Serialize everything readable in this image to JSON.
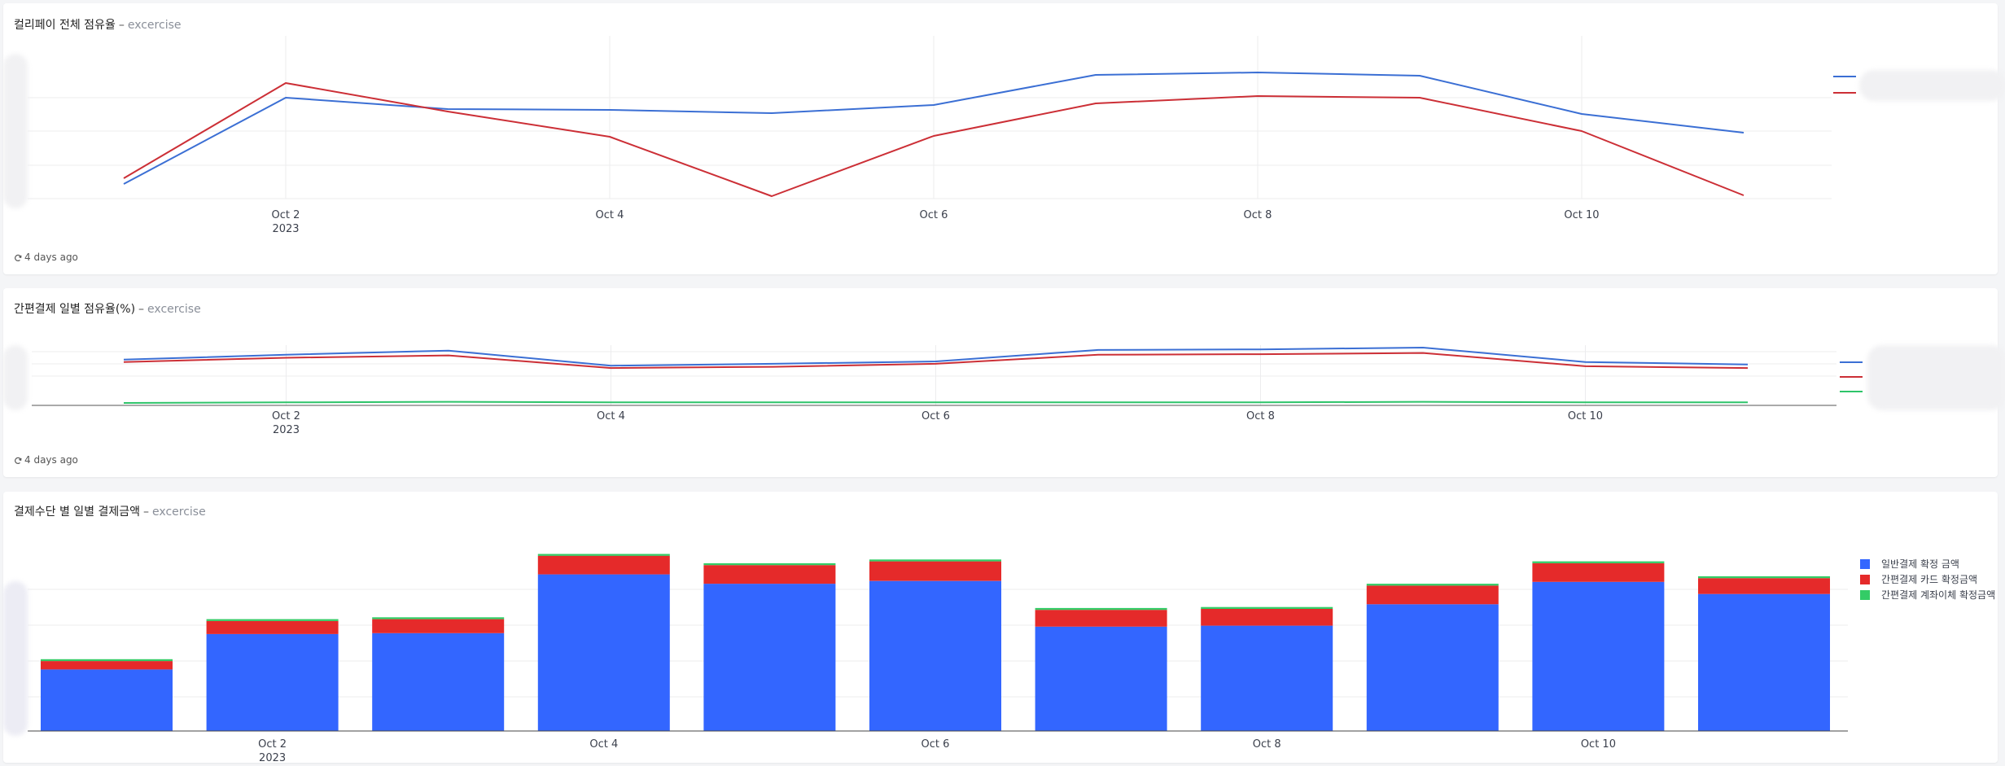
{
  "charts": [
    {
      "title": "컬리페이 전체 점유율",
      "separator": "–",
      "database": "excercise",
      "footer": "4 days ago",
      "x_ticks": [
        {
          "day": 2,
          "label": "Oct 2",
          "sub": "2023"
        },
        {
          "day": 4,
          "label": "Oct 4",
          "sub": ""
        },
        {
          "day": 6,
          "label": "Oct 6",
          "sub": ""
        },
        {
          "day": 8,
          "label": "Oct 8",
          "sub": ""
        },
        {
          "day": 10,
          "label": "Oct 10",
          "sub": ""
        }
      ]
    },
    {
      "title": "간편결제 일별 점유율(%)",
      "separator": "–",
      "database": "excercise",
      "footer": "4 days ago",
      "x_ticks": [
        {
          "day": 2,
          "label": "Oct 2",
          "sub": "2023"
        },
        {
          "day": 4,
          "label": "Oct 4",
          "sub": ""
        },
        {
          "day": 6,
          "label": "Oct 6",
          "sub": ""
        },
        {
          "day": 8,
          "label": "Oct 8",
          "sub": ""
        },
        {
          "day": 10,
          "label": "Oct 10",
          "sub": ""
        }
      ]
    },
    {
      "title": "결제수단 별 일별 결제금액",
      "separator": "–",
      "database": "excercise",
      "x_ticks": [
        {
          "day": 2,
          "label": "Oct 2",
          "sub": "2023"
        },
        {
          "day": 4,
          "label": "Oct 4",
          "sub": ""
        },
        {
          "day": 6,
          "label": "Oct 6",
          "sub": ""
        },
        {
          "day": 8,
          "label": "Oct 8",
          "sub": ""
        },
        {
          "day": 10,
          "label": "Oct 10",
          "sub": ""
        }
      ]
    }
  ],
  "chart_data": [
    {
      "type": "line",
      "x": [
        "2023-10-01",
        "2023-10-02",
        "2023-10-03",
        "2023-10-04",
        "2023-10-05",
        "2023-10-06",
        "2023-10-07",
        "2023-10-08",
        "2023-10-09",
        "2023-10-10",
        "2023-10-11"
      ],
      "ylim": [
        0,
        100
      ],
      "grid": true,
      "legend": "right, labels obscured",
      "series": [
        {
          "color": "#3b6fd4",
          "values": [
            9,
            62,
            55,
            54.5,
            52.5,
            57.5,
            76,
            77.5,
            75.5,
            52,
            40.5
          ]
        },
        {
          "color": "#cc2f36",
          "values": [
            12.5,
            71,
            53.5,
            38,
            1.5,
            38.5,
            58.5,
            63,
            62,
            41.5,
            2
          ]
        }
      ]
    },
    {
      "type": "line",
      "x": [
        "2023-10-01",
        "2023-10-02",
        "2023-10-03",
        "2023-10-04",
        "2023-10-05",
        "2023-10-06",
        "2023-10-07",
        "2023-10-08",
        "2023-10-09",
        "2023-10-10",
        "2023-10-11"
      ],
      "ylim": [
        0,
        100
      ],
      "grid": true,
      "legend": "right, labels obscured",
      "series": [
        {
          "color": "#3b6fd4",
          "values": [
            76,
            84,
            91,
            66,
            69,
            73,
            92,
            93,
            96,
            72,
            68
          ]
        },
        {
          "color": "#cc2f36",
          "values": [
            72,
            79,
            83,
            62,
            64,
            69,
            84,
            85,
            87,
            65,
            62
          ]
        },
        {
          "color": "#2ec46a",
          "values": [
            4,
            5,
            6,
            5,
            5,
            5,
            5,
            5,
            6,
            5,
            5
          ]
        }
      ]
    },
    {
      "type": "bar",
      "stacked": true,
      "categories": [
        "2023-10-01",
        "2023-10-02",
        "2023-10-03",
        "2023-10-04",
        "2023-10-05",
        "2023-10-06",
        "2023-10-07",
        "2023-10-08",
        "2023-10-09",
        "2023-10-10",
        "2023-10-11"
      ],
      "ylim": [
        0,
        100
      ],
      "grid": true,
      "legend": "right",
      "series": [
        {
          "name": "일반결제 확정 금액",
          "color": "#3366ff",
          "values": [
            33,
            52,
            52.5,
            84,
            79,
            80.5,
            56,
            56.5,
            68,
            80,
            73.5
          ]
        },
        {
          "name": "간편결제 카드 확정금액",
          "color": "#e52a2a",
          "values": [
            4.5,
            7,
            7.5,
            10,
            10,
            10.5,
            9,
            9,
            10,
            10,
            8.5
          ]
        },
        {
          "name": "간편결제 계좌이체 확정금액",
          "color": "#33cc66",
          "values": [
            1,
            1,
            1,
            1,
            1,
            1,
            1,
            1,
            1,
            1,
            1
          ]
        }
      ]
    }
  ]
}
